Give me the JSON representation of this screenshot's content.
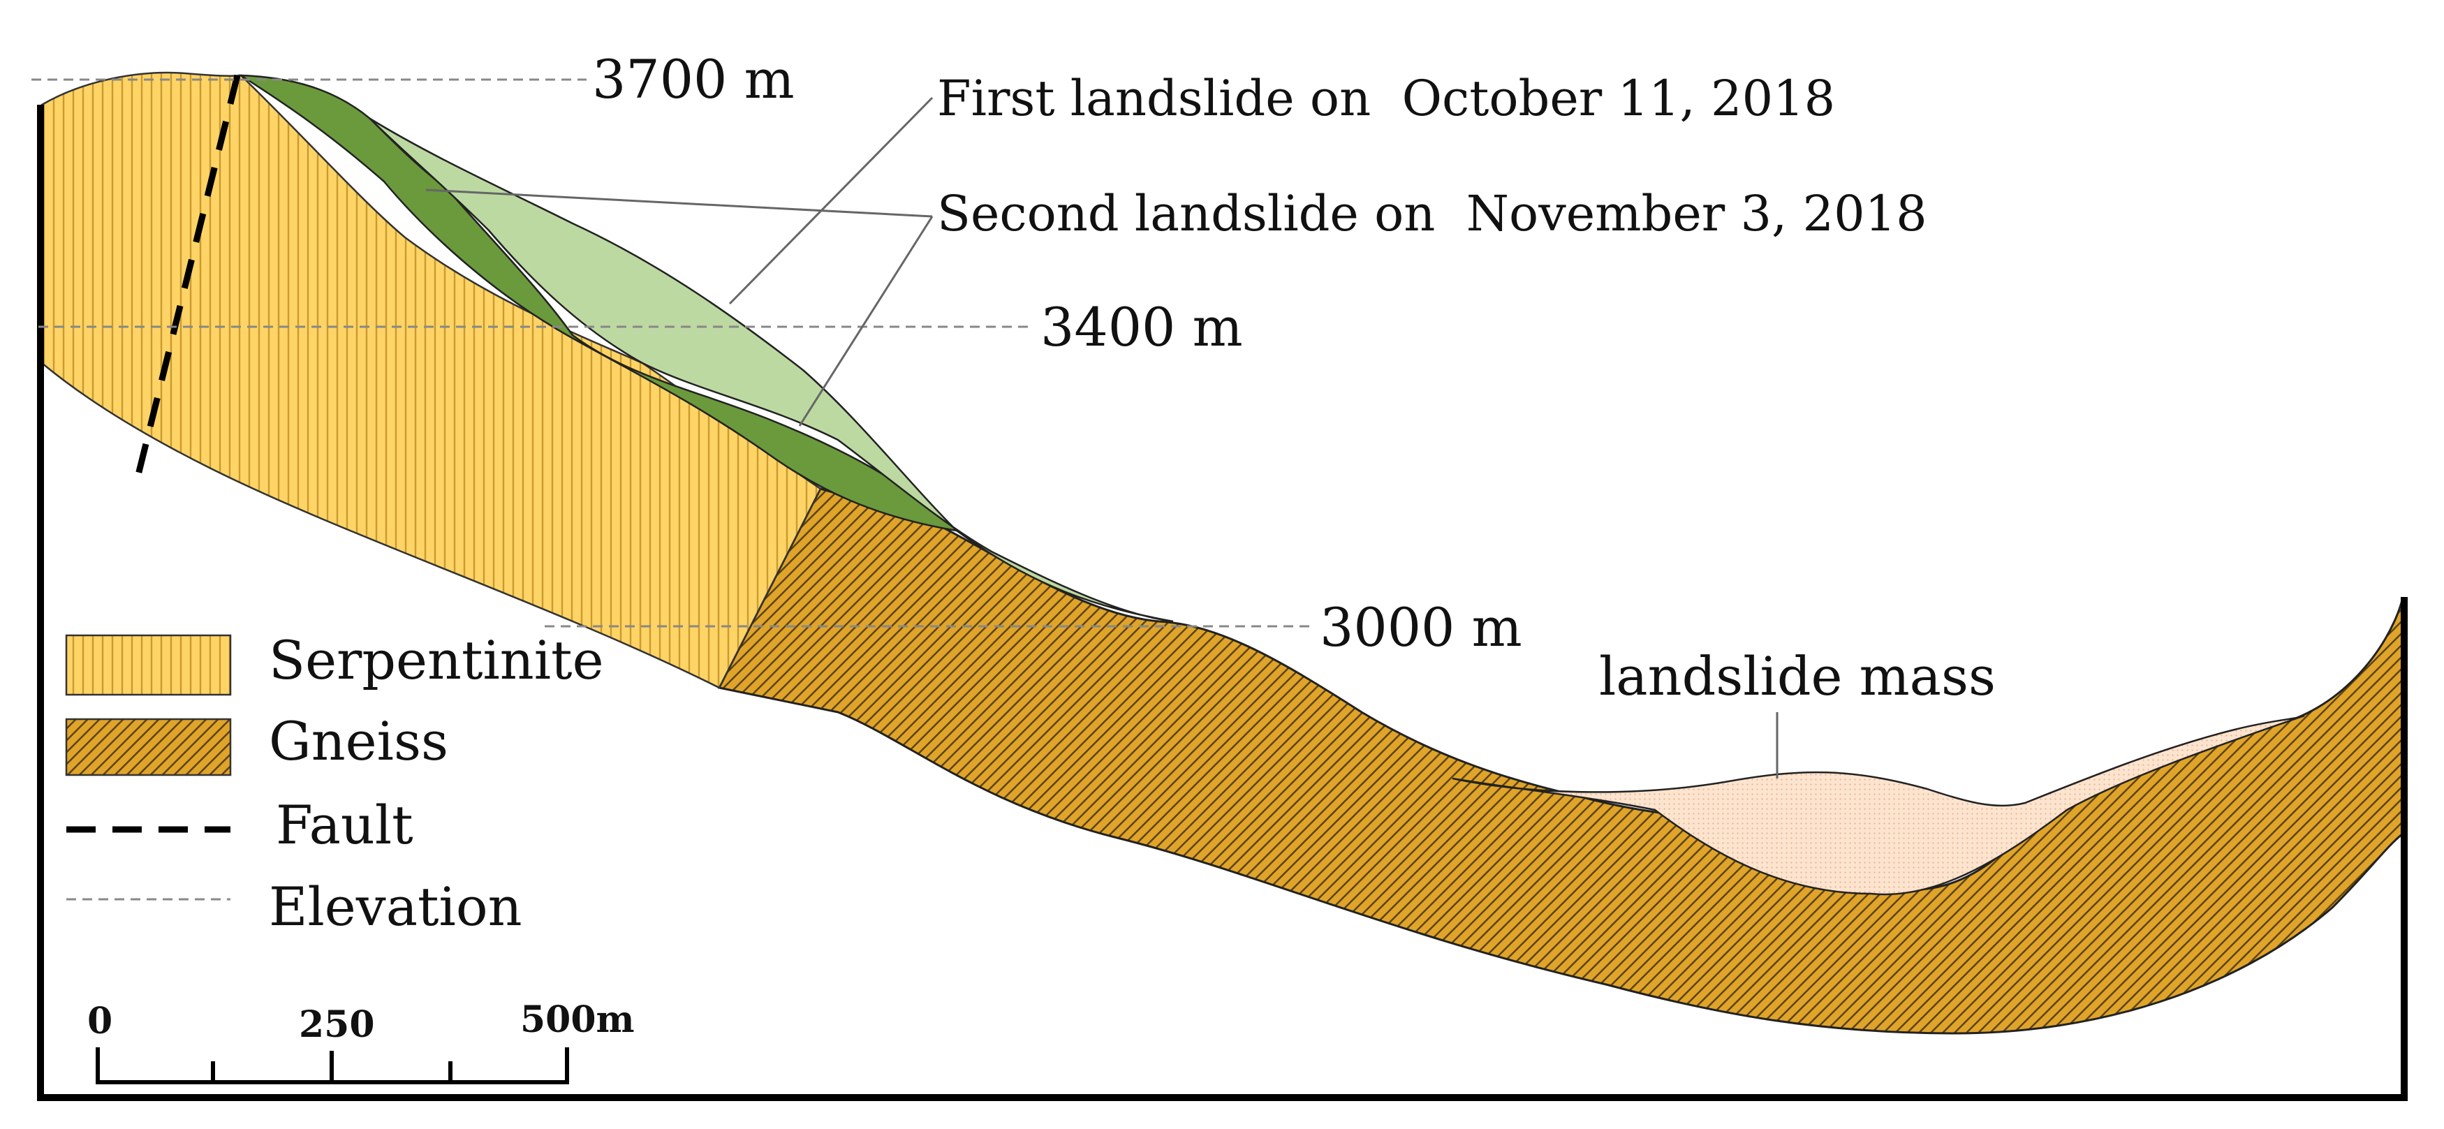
{
  "annotations": {
    "first_landslide": "First landslide on  October 11, 2018",
    "second_landslide": "Second landslide on  November 3, 2018",
    "landslide_mass": "landslide mass"
  },
  "elevations": {
    "e3700": "3700 m",
    "e3400": "3400 m",
    "e3000": "3000 m"
  },
  "legend": {
    "serpentinite": "Serpentinite",
    "gneiss": "Gneiss",
    "fault": "Fault",
    "elevation": "Elevation"
  },
  "scale_bar": {
    "zero": "0",
    "mid": "250",
    "end": "500m"
  },
  "colors": {
    "serpentinite_fill": "#FFD466",
    "serpentinite_stripe": "#C99A2E",
    "gneiss_fill": "#E0A42A",
    "gneiss_stripe": "#5B4310",
    "second_landslide_fill": "#6A9A3C",
    "first_landslide_fill": "#BCD9A2",
    "landslide_mass_fill": "#FCE4CF"
  }
}
